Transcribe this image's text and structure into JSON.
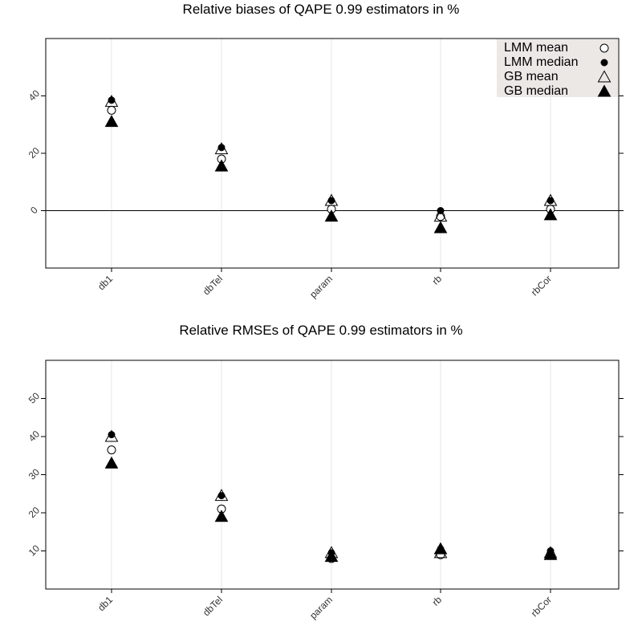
{
  "chart_data": [
    {
      "type": "scatter",
      "title": "Relative biases of QAPE 0.99 estimators in %",
      "categories": [
        "db1",
        "dbTel",
        "param",
        "rb",
        "rbCor"
      ],
      "ylim": [
        -20,
        60
      ],
      "yticks": [
        0,
        20,
        40
      ],
      "reference_line": 0,
      "legend": {
        "placement": "top-right",
        "entries": [
          "LMM mean",
          "LMM median",
          "GB mean",
          "GB median"
        ]
      },
      "series": [
        {
          "name": "LMM mean",
          "marker": "open-circle",
          "values": [
            35,
            18,
            0.5,
            -2,
            0.5
          ]
        },
        {
          "name": "LMM median",
          "marker": "filled-circle",
          "values": [
            38.5,
            22,
            3.5,
            0,
            3.5
          ]
        },
        {
          "name": "GB mean",
          "marker": "open-triangle",
          "values": [
            38,
            21.5,
            3.5,
            -2,
            3.5
          ]
        },
        {
          "name": "GB median",
          "marker": "filled-triangle",
          "values": [
            31,
            15.5,
            -2,
            -6,
            -1.5
          ]
        }
      ]
    },
    {
      "type": "scatter",
      "title": "Relative RMSEs of QAPE 0.99 estimators in %",
      "categories": [
        "db1",
        "dbTel",
        "param",
        "rb",
        "rbCor"
      ],
      "ylim": [
        0,
        60
      ],
      "yticks": [
        10,
        20,
        30,
        40,
        50
      ],
      "series": [
        {
          "name": "LMM mean",
          "marker": "open-circle",
          "values": [
            36.5,
            21,
            8,
            9,
            9
          ]
        },
        {
          "name": "LMM median",
          "marker": "filled-circle",
          "values": [
            40.5,
            24.5,
            9.5,
            10.5,
            10
          ]
        },
        {
          "name": "GB mean",
          "marker": "open-triangle",
          "values": [
            40,
            24.5,
            9.5,
            9.5,
            9.5
          ]
        },
        {
          "name": "GB median",
          "marker": "filled-triangle",
          "values": [
            33,
            19,
            8.5,
            10.5,
            9
          ]
        }
      ]
    }
  ]
}
